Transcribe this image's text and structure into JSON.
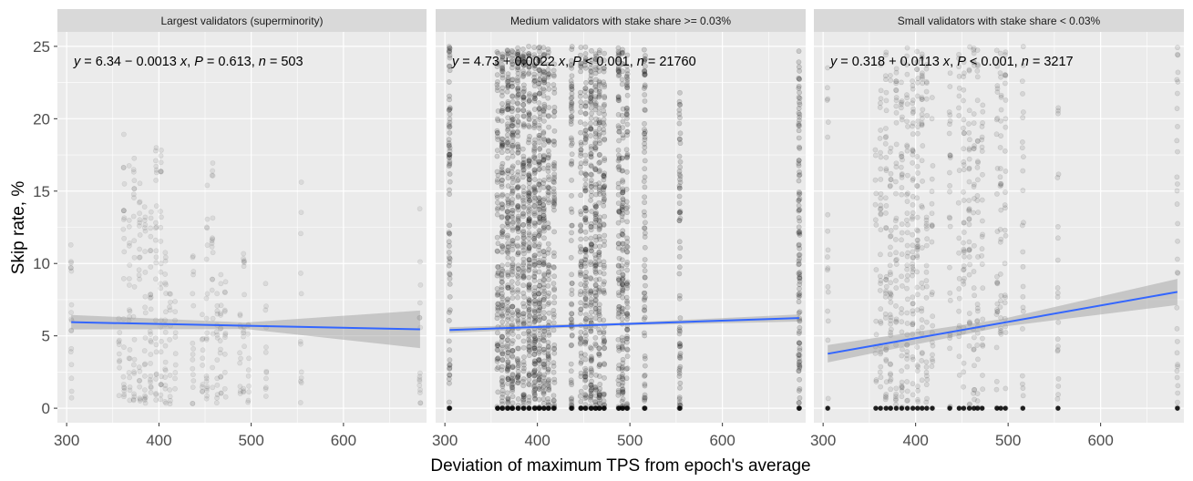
{
  "chart_data": {
    "type": "scatter",
    "layout": "faceted-3-panels",
    "xlabel": "Deviation of maximum TPS from epoch's average",
    "ylabel": "Skip rate, %",
    "xlim": [
      290,
      690
    ],
    "ylim": [
      -1,
      26
    ],
    "x_ticks": [
      300,
      400,
      500,
      600
    ],
    "y_ticks": [
      0,
      5,
      10,
      15,
      20,
      25
    ],
    "colors": {
      "panel_bg": "#ebebeb",
      "grid": "#ffffff",
      "strip_bg": "#d9d9d9",
      "point": "#000000",
      "fit_line": "#3366ff",
      "ci_band": "#999999"
    },
    "x_columns": [
      305,
      357,
      362,
      368,
      373,
      379,
      385,
      391,
      397,
      402,
      407,
      412,
      418,
      437,
      447,
      452,
      458,
      463,
      467,
      472,
      488,
      492,
      497,
      516,
      554,
      683
    ],
    "panels": [
      {
        "title": "Largest validators (superminority)",
        "equation": {
          "prefix": "y",
          "body": " = 6.34 − 0.0013 ",
          "var": "x",
          "sep1": ", ",
          "pvar": "P",
          "pval": " = 0.613, ",
          "nvar": "n",
          "nval": " = 503"
        },
        "n": 503,
        "fit": {
          "intercept": 6.34,
          "slope": -0.0013,
          "x_range": [
            305,
            683
          ],
          "ci_low": [
            0.5,
            1.3
          ],
          "ci_high": [
            0.5,
            1.3
          ]
        },
        "point_opacity": 0.07,
        "col_max": [
          13,
          8,
          19,
          17,
          18,
          19,
          15,
          14,
          20,
          18,
          13,
          9,
          8,
          12,
          7,
          16,
          17,
          9,
          10,
          9,
          7,
          11,
          7,
          9,
          17,
          14
        ],
        "col_counts": [
          18,
          10,
          22,
          20,
          22,
          22,
          22,
          24,
          26,
          24,
          20,
          12,
          10,
          16,
          10,
          20,
          18,
          14,
          14,
          12,
          10,
          16,
          10,
          12,
          12,
          16
        ]
      },
      {
        "title": "Medium validators with stake share >= 0.03%",
        "equation": {
          "prefix": "y",
          "body": " = 4.73 + 0.0022 ",
          "var": "x",
          "sep1": ", ",
          "pvar": "P",
          "pval": " < 0.001, ",
          "nvar": "n",
          "nval": " = 21760"
        },
        "n": 21760,
        "fit": {
          "intercept": 4.73,
          "slope": 0.0022,
          "x_range": [
            305,
            683
          ],
          "ci_low": [
            0.2,
            0.25
          ],
          "ci_high": [
            0.2,
            0.25
          ]
        },
        "point_opacity": 0.14,
        "col_max": [
          25,
          25,
          25,
          25,
          25,
          25,
          25,
          25,
          25,
          25,
          25,
          25,
          24,
          25,
          25,
          25,
          25,
          25,
          25,
          25,
          25,
          25,
          25,
          25,
          22,
          25
        ],
        "col_counts": [
          80,
          70,
          110,
          120,
          120,
          120,
          120,
          130,
          140,
          130,
          110,
          90,
          70,
          80,
          70,
          110,
          110,
          90,
          90,
          80,
          80,
          100,
          80,
          80,
          70,
          110
        ]
      },
      {
        "title": "Small validators with stake share < 0.03%",
        "equation": {
          "prefix": "y",
          "body": " = 0.318 + 0.0113 ",
          "var": "x",
          "sep1": ", ",
          "pvar": "P",
          "pval": " < 0.001, ",
          "nvar": "n",
          "nval": " = 3217"
        },
        "n": 3217,
        "fit": {
          "intercept": 0.318,
          "slope": 0.0113,
          "x_range": [
            305,
            683
          ],
          "ci_low": [
            0.6,
            0.9
          ],
          "ci_high": [
            0.6,
            0.9
          ]
        },
        "point_opacity": 0.09,
        "col_max": [
          24,
          20,
          24,
          25,
          25,
          25,
          25,
          25,
          25,
          25,
          25,
          24,
          22,
          25,
          25,
          25,
          25,
          25,
          25,
          25,
          25,
          25,
          25,
          25,
          21,
          25
        ],
        "col_counts": [
          20,
          16,
          36,
          40,
          40,
          40,
          40,
          44,
          48,
          44,
          36,
          30,
          24,
          28,
          24,
          36,
          36,
          30,
          30,
          26,
          26,
          30,
          26,
          26,
          22,
          34
        ]
      }
    ]
  }
}
